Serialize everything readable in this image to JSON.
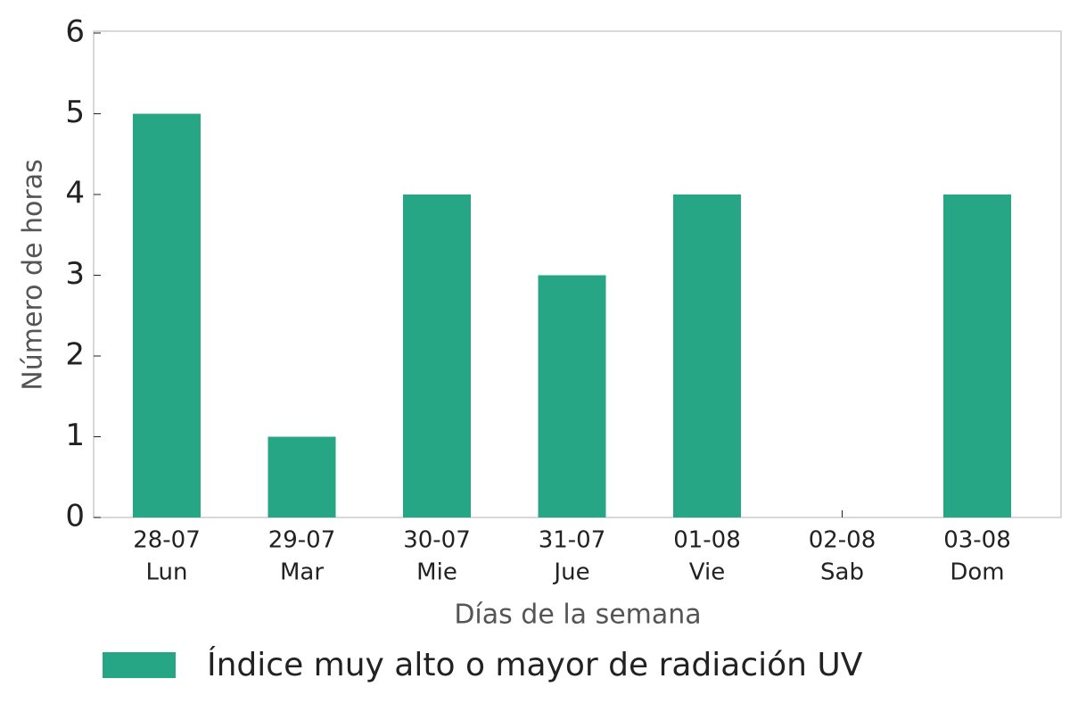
{
  "chart_data": {
    "type": "bar",
    "categories": [
      [
        "28-07",
        "Lun"
      ],
      [
        "29-07",
        "Mar"
      ],
      [
        "30-07",
        "Mie"
      ],
      [
        "31-07",
        "Jue"
      ],
      [
        "01-08",
        "Vie"
      ],
      [
        "02-08",
        "Sab"
      ],
      [
        "03-08",
        "Dom"
      ]
    ],
    "series": [
      {
        "name": "Índice muy alto o mayor de radiación UV",
        "color": "#27a685",
        "values": [
          5,
          1,
          4,
          3,
          4,
          0,
          4
        ]
      }
    ],
    "x_label": "Días de la semana",
    "y_label": "Número de horas",
    "ylim": [
      0,
      6
    ],
    "yticks": [
      0,
      1,
      2,
      3,
      4,
      5,
      6
    ]
  }
}
